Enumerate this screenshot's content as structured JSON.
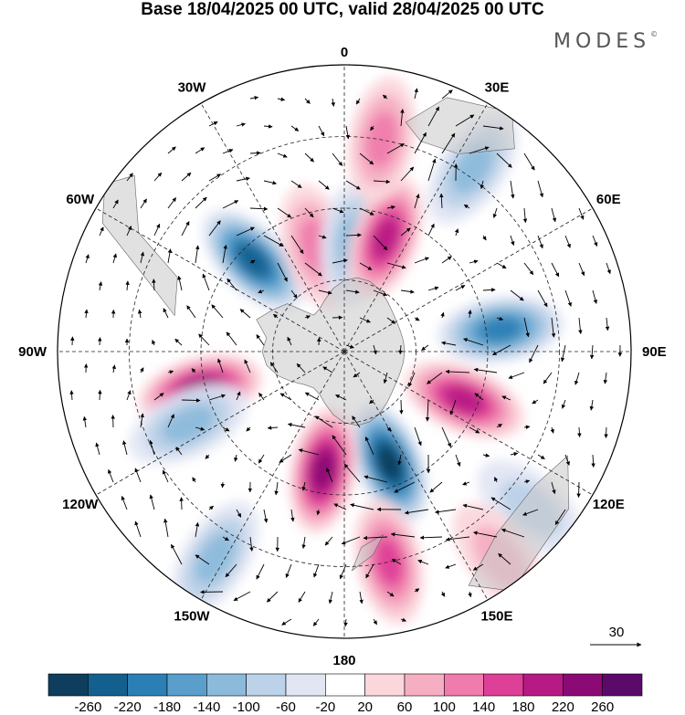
{
  "title": "Base 18/04/2025 00 UTC, valid 28/04/2025 00 UTC",
  "brand": "MODES",
  "brand_mark": "©",
  "map": {
    "projection": "south-polar-stereographic",
    "meridian_labels": [
      {
        "text": "0",
        "lon": 0
      },
      {
        "text": "30E",
        "lon": 30
      },
      {
        "text": "60E",
        "lon": 60
      },
      {
        "text": "90E",
        "lon": 90
      },
      {
        "text": "120E",
        "lon": 120
      },
      {
        "text": "150E",
        "lon": 150
      },
      {
        "text": "180",
        "lon": 180
      },
      {
        "text": "150W",
        "lon": -150
      },
      {
        "text": "120W",
        "lon": -120
      },
      {
        "text": "90W",
        "lon": -90
      },
      {
        "text": "60W",
        "lon": -60
      },
      {
        "text": "30W",
        "lon": -30
      }
    ],
    "anomaly_centers": [
      {
        "sign": "positive",
        "lon": -105,
        "rel_r": 0.52,
        "value": 240
      },
      {
        "sign": "negative",
        "lon": -45,
        "rel_r": 0.45,
        "value": -220
      },
      {
        "sign": "positive",
        "lon": -15,
        "rel_r": 0.38,
        "value": 100
      },
      {
        "sign": "negative",
        "lon": 5,
        "rel_r": 0.38,
        "value": -120
      },
      {
        "sign": "positive",
        "lon": 20,
        "rel_r": 0.42,
        "value": 180
      },
      {
        "sign": "positive",
        "lon": 10,
        "rel_r": 0.75,
        "value": 100
      },
      {
        "sign": "negative",
        "lon": 35,
        "rel_r": 0.78,
        "value": -100
      },
      {
        "sign": "negative",
        "lon": 82,
        "rel_r": 0.55,
        "value": -180
      },
      {
        "sign": "positive",
        "lon": 112,
        "rel_r": 0.45,
        "value": 200
      },
      {
        "sign": "negative",
        "lon": 158,
        "rel_r": 0.42,
        "value": -260
      },
      {
        "sign": "positive",
        "lon": -170,
        "rel_r": 0.42,
        "value": 220
      },
      {
        "sign": "positive",
        "lon": 168,
        "rel_r": 0.75,
        "value": 140
      },
      {
        "sign": "negative",
        "lon": -115,
        "rel_r": 0.6,
        "value": -120
      },
      {
        "sign": "negative",
        "lon": -148,
        "rel_r": 0.85,
        "value": -100
      },
      {
        "sign": "negative",
        "lon": 130,
        "rel_r": 0.85,
        "value": -60
      },
      {
        "sign": "positive",
        "lon": 143,
        "rel_r": 0.9,
        "value": 60
      }
    ]
  },
  "vector_scale": {
    "label": "30"
  },
  "colorbar": {
    "levels": [
      "-260",
      "-220",
      "-180",
      "-140",
      "-100",
      "-60",
      "-20",
      "20",
      "60",
      "100",
      "140",
      "180",
      "220",
      "260"
    ],
    "colors": [
      "#0e3d5e",
      "#13608f",
      "#2b7fb4",
      "#5a9fcb",
      "#8cbadb",
      "#bcd2e8",
      "#e2e6f3",
      "#ffffff",
      "#fbd7dc",
      "#f6aec3",
      "#ef7cac",
      "#de3f97",
      "#b81a85",
      "#8c0a75",
      "#5b0a6a"
    ]
  }
}
